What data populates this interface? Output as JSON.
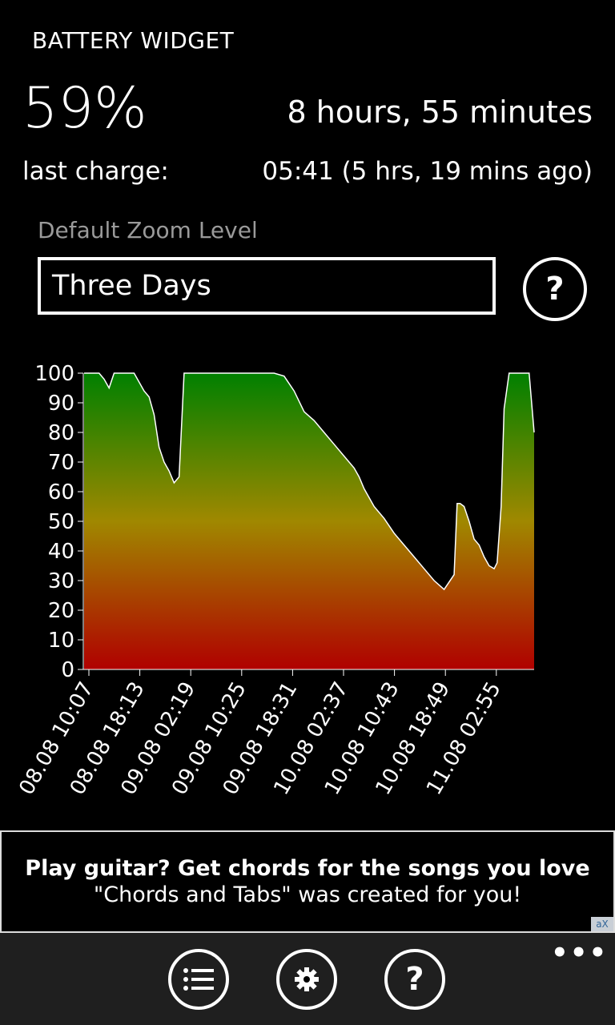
{
  "app": {
    "title": "BATTERY WIDGET"
  },
  "status": {
    "percent": "59%",
    "remaining": "8 hours, 55 minutes",
    "last_charge_label": "last charge:",
    "last_charge_value": "05:41 (5 hrs, 19 mins ago)"
  },
  "zoom": {
    "label": "Default Zoom Level",
    "selected": "Three Days",
    "help_icon": "question-mark-icon"
  },
  "chart_data": {
    "type": "area",
    "ylim": [
      0,
      100
    ],
    "y_ticks": [
      "100",
      "90",
      "80",
      "70",
      "60",
      "50",
      "40",
      "30",
      "20",
      "10",
      "0"
    ],
    "x_tick_labels": [
      "08.08 10:07",
      "08.08 18:13",
      "09.08 02:19",
      "09.08 10:25",
      "09.08 18:31",
      "10.08 02:37",
      "10.08 10:43",
      "10.08 18:49",
      "11.08 02:55"
    ],
    "gradient_colors": [
      "#008000",
      "#a08800",
      "#b00000"
    ],
    "line_color": "#ffffff",
    "x": [
      0,
      1.5,
      2,
      2.5,
      3,
      5,
      6,
      6.5,
      7,
      7.5,
      8,
      8.5,
      9,
      9.5,
      10,
      11,
      11.5,
      12,
      12.5,
      14,
      15,
      16,
      17,
      18,
      19,
      20,
      21,
      22,
      23,
      24,
      25,
      26,
      27,
      27.5,
      28,
      28.5,
      29,
      30,
      31,
      32,
      33,
      34,
      35,
      36,
      37,
      37.3,
      37.6,
      38,
      38.5,
      39,
      39.5,
      40,
      40.5,
      41,
      41.3,
      41.7,
      42,
      42.5,
      43,
      43.5,
      44,
      44.5,
      45
    ],
    "values": [
      100,
      100,
      98,
      95,
      100,
      100,
      94,
      92,
      86,
      75,
      70,
      67,
      63,
      65,
      100,
      100,
      100,
      100,
      100,
      100,
      100,
      100,
      100,
      100,
      100,
      99,
      94,
      87,
      84,
      80,
      76,
      72,
      68,
      65,
      61,
      58,
      55,
      51,
      46,
      42,
      38,
      34,
      30,
      27,
      32,
      56,
      56,
      55,
      50,
      44,
      42,
      38,
      35,
      34,
      36,
      55,
      88,
      100,
      100,
      100,
      100,
      100,
      80
    ],
    "values_note_tail": [
      0
    ]
  },
  "ad": {
    "headline": "Play guitar? Get chords for the songs you love",
    "subtext": "\"Chords and Tabs\" was created for you!",
    "badge": "aX"
  },
  "app_bar": {
    "buttons": [
      {
        "icon": "list-icon"
      },
      {
        "icon": "gear-icon"
      },
      {
        "icon": "question-mark-icon"
      }
    ],
    "more": "•••"
  }
}
